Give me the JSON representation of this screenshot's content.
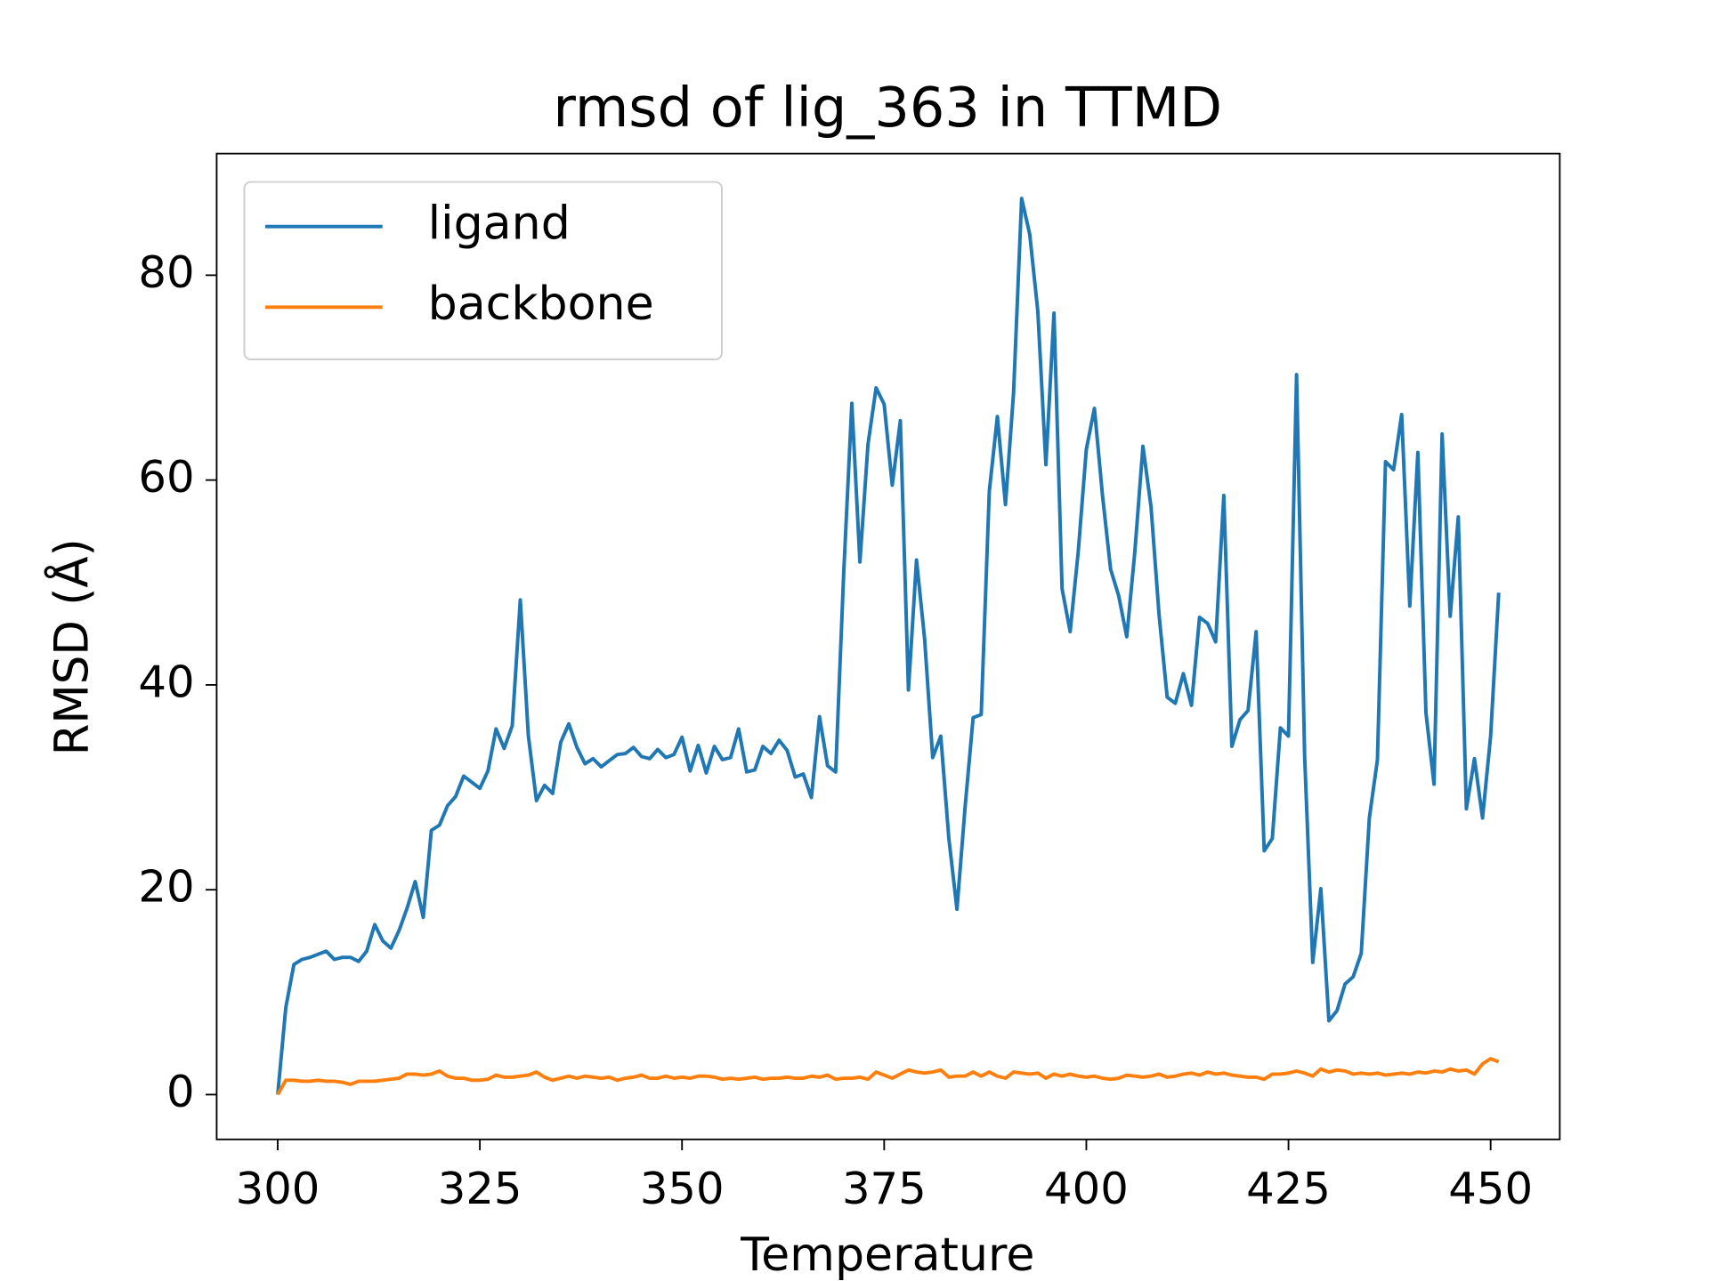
{
  "chart_data": {
    "type": "line",
    "title": "rmsd of lig_363 in TTMD",
    "xlabel": "Temperature",
    "ylabel": "RMSD (Å)",
    "x": [
      300,
      301,
      302,
      303,
      304,
      305,
      306,
      307,
      308,
      309,
      310,
      311,
      312,
      313,
      314,
      315,
      316,
      317,
      318,
      319,
      320,
      321,
      322,
      323,
      324,
      325,
      326,
      327,
      328,
      329,
      330,
      331,
      332,
      333,
      334,
      335,
      336,
      337,
      338,
      339,
      340,
      341,
      342,
      343,
      344,
      345,
      346,
      347,
      348,
      349,
      350,
      351,
      352,
      353,
      354,
      355,
      356,
      357,
      358,
      359,
      360,
      361,
      362,
      363,
      364,
      365,
      366,
      367,
      368,
      369,
      370,
      371,
      372,
      373,
      374,
      375,
      376,
      377,
      378,
      379,
      380,
      381,
      382,
      383,
      384,
      385,
      386,
      387,
      388,
      389,
      390,
      391,
      392,
      393,
      394,
      395,
      396,
      397,
      398,
      399,
      400,
      401,
      402,
      403,
      404,
      405,
      406,
      407,
      408,
      409,
      410,
      411,
      412,
      413,
      414,
      415,
      416,
      417,
      418,
      419,
      420,
      421,
      422,
      423,
      424,
      425,
      426,
      427,
      428,
      429,
      430,
      431,
      432,
      433,
      434,
      435,
      436,
      437,
      438,
      439,
      440,
      441,
      442,
      443,
      444,
      445,
      446,
      447,
      448,
      449,
      450,
      451
    ],
    "series": [
      {
        "name": "ligand",
        "color": "#1f77b4",
        "values": [
          0,
          8.5,
          12.7,
          13.2,
          13.4,
          13.7,
          14.0,
          13.2,
          13.4,
          13.4,
          13.0,
          14.0,
          16.6,
          15.0,
          14.3,
          16.0,
          18.2,
          20.8,
          17.3,
          25.8,
          26.3,
          28.2,
          29.1,
          31.1,
          30.5,
          29.9,
          31.6,
          35.7,
          33.8,
          36.0,
          48.3,
          35.0,
          28.7,
          30.2,
          29.4,
          34.4,
          36.2,
          33.9,
          32.3,
          32.8,
          32.0,
          32.6,
          33.2,
          33.3,
          33.9,
          33.0,
          32.8,
          33.7,
          32.9,
          33.2,
          34.9,
          31.6,
          34.1,
          31.4,
          34.0,
          32.7,
          32.9,
          35.7,
          31.5,
          31.7,
          34.0,
          33.3,
          34.6,
          33.6,
          31.0,
          31.3,
          29.0,
          36.9,
          32.1,
          31.5,
          51.0,
          67.5,
          52.0,
          63.5,
          69.0,
          67.4,
          59.5,
          65.8,
          39.5,
          52.2,
          44.5,
          32.9,
          35.0,
          25.0,
          18.1,
          28.0,
          36.8,
          37.1,
          58.9,
          66.2,
          57.6,
          68.5,
          87.5,
          84.0,
          76.5,
          61.5,
          76.3,
          49.4,
          45.2,
          53.0,
          63.0,
          67.0,
          58.5,
          51.3,
          48.7,
          44.7,
          53.0,
          63.3,
          57.4,
          46.8,
          38.8,
          38.2,
          41.1,
          38.0,
          46.6,
          46.0,
          44.2,
          58.5,
          34.0,
          36.6,
          37.5,
          45.2,
          23.8,
          25.0,
          35.8,
          35.0,
          70.3,
          33.0,
          12.9,
          20.1,
          7.2,
          8.2,
          10.8,
          11.5,
          13.8,
          27.0,
          32.7,
          61.8,
          61.0,
          66.4,
          47.7,
          62.7,
          37.3,
          30.3,
          64.5,
          46.7,
          56.4,
          27.9,
          32.8,
          27.0,
          35.0,
          49.0
        ]
      },
      {
        "name": "backbone",
        "color": "#ff7f0e",
        "values": [
          0,
          1.4,
          1.4,
          1.3,
          1.3,
          1.4,
          1.3,
          1.3,
          1.2,
          1.0,
          1.3,
          1.3,
          1.3,
          1.4,
          1.5,
          1.6,
          2.0,
          2.0,
          1.9,
          2.0,
          2.3,
          1.8,
          1.6,
          1.6,
          1.4,
          1.4,
          1.5,
          1.9,
          1.7,
          1.7,
          1.8,
          1.9,
          2.2,
          1.7,
          1.4,
          1.6,
          1.8,
          1.6,
          1.8,
          1.7,
          1.6,
          1.7,
          1.4,
          1.6,
          1.7,
          1.9,
          1.6,
          1.6,
          1.8,
          1.6,
          1.7,
          1.6,
          1.8,
          1.8,
          1.7,
          1.5,
          1.6,
          1.5,
          1.6,
          1.7,
          1.5,
          1.6,
          1.6,
          1.7,
          1.6,
          1.6,
          1.8,
          1.7,
          1.9,
          1.5,
          1.6,
          1.6,
          1.7,
          1.5,
          2.2,
          1.9,
          1.6,
          2.0,
          2.4,
          2.2,
          2.1,
          2.2,
          2.4,
          1.7,
          1.8,
          1.8,
          2.2,
          1.8,
          2.2,
          1.8,
          1.6,
          2.2,
          2.1,
          2.0,
          2.1,
          1.6,
          2.0,
          1.8,
          2.0,
          1.8,
          1.7,
          1.8,
          1.6,
          1.5,
          1.6,
          1.9,
          1.8,
          1.7,
          1.8,
          2.0,
          1.7,
          1.8,
          2.0,
          2.1,
          1.9,
          2.2,
          2.0,
          2.1,
          1.9,
          1.8,
          1.7,
          1.7,
          1.5,
          2.0,
          2.0,
          2.1,
          2.3,
          2.1,
          1.8,
          2.5,
          2.2,
          2.4,
          2.3,
          2.0,
          2.1,
          2.0,
          2.1,
          1.9,
          2.0,
          2.1,
          2.0,
          2.2,
          2.1,
          2.3,
          2.2,
          2.5,
          2.3,
          2.4,
          2.0,
          3.0,
          3.5,
          3.2
        ]
      }
    ],
    "xlim": [
      292.45,
      458.55
    ],
    "ylim": [
      -4.375,
      91.875
    ],
    "xticks": [
      300,
      325,
      350,
      375,
      400,
      425,
      450
    ],
    "yticks": [
      0,
      20,
      40,
      60,
      80
    ],
    "legend": "upper left"
  }
}
